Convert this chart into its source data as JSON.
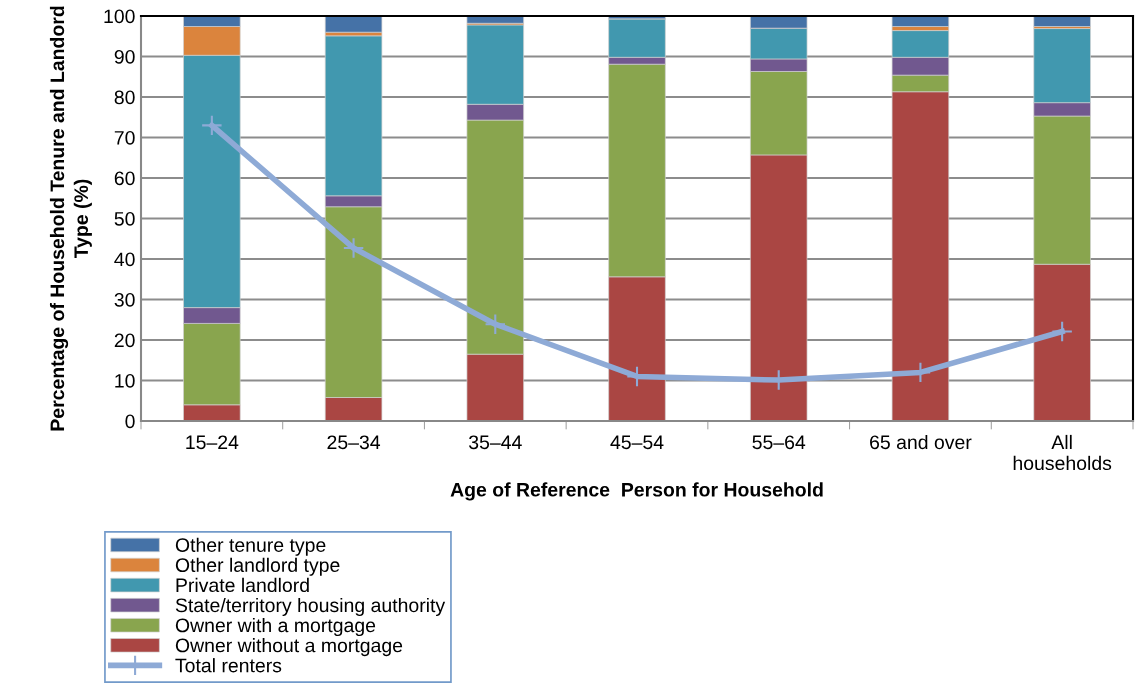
{
  "chart_data": {
    "type": "bar",
    "stacked": true,
    "xlabel": "Age of Reference  Person for Household",
    "ylabel": "Percentage of Household Tenure and Landord\nType (%)",
    "categories": [
      "15–24",
      "25–34",
      "35–44",
      "45–54",
      "55–64",
      "65 and over",
      "All households"
    ],
    "ylim": [
      0,
      100
    ],
    "yticks": [
      0,
      10,
      20,
      30,
      40,
      50,
      60,
      70,
      80,
      90,
      100
    ],
    "grid": "y",
    "legend": "bottom left",
    "marker": "cross",
    "series": [
      {
        "name": "Owner without a mortgage",
        "color": "#aa4643",
        "values": [
          4.0,
          5.8,
          16.5,
          35.6,
          65.7,
          81.3,
          38.7
        ]
      },
      {
        "name": "Owner with a mortgage",
        "color": "#89a54e",
        "values": [
          20.1,
          47.1,
          57.8,
          52.5,
          20.6,
          4.1,
          36.6
        ]
      },
      {
        "name": "State/territory housing authority",
        "color": "#71588f",
        "values": [
          3.9,
          2.7,
          3.9,
          1.7,
          3.1,
          4.4,
          3.3
        ]
      },
      {
        "name": "Private landlord",
        "color": "#4198af",
        "values": [
          62.3,
          39.5,
          19.6,
          9.5,
          7.6,
          6.6,
          18.3
        ]
      },
      {
        "name": "Other landlord type",
        "color": "#db843d",
        "values": [
          7.1,
          0.9,
          0.4,
          0,
          0,
          1.0,
          0.5
        ]
      },
      {
        "name": "Other tenure type",
        "color": "#4572a7",
        "values": [
          2.6,
          4.0,
          1.8,
          0.7,
          3.0,
          2.6,
          2.6
        ]
      },
      {
        "name": "Total renters",
        "type": "line",
        "color": "#8eaad6",
        "values": [
          73.0,
          42.7,
          23.9,
          11.0,
          10.1,
          12.0,
          22.1
        ]
      }
    ]
  }
}
